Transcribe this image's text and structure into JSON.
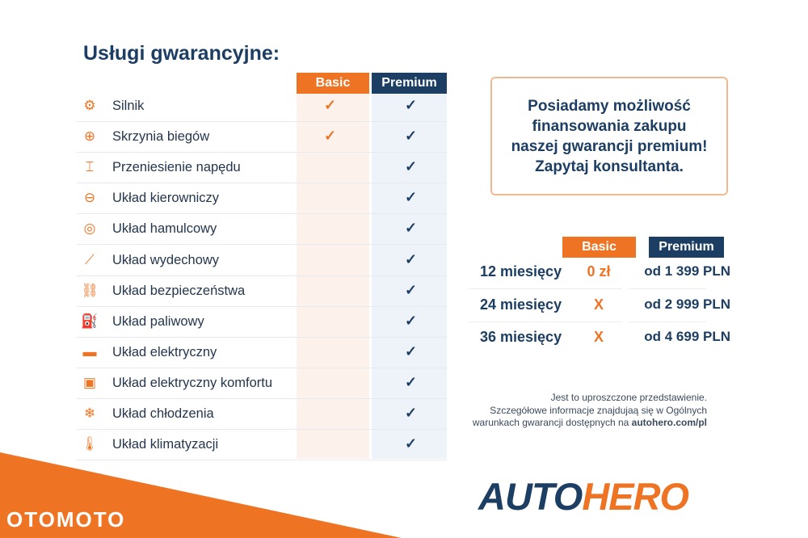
{
  "title": "Usługi gwarancyjne:",
  "plans": {
    "basic": "Basic",
    "premium": "Premium"
  },
  "colors": {
    "orange": "#ee7424",
    "navy": "#1d3e63"
  },
  "services": [
    {
      "label": "Silnik",
      "icon": "engine-icon",
      "glyph": "⚙",
      "basic": "✓",
      "premium": "✓"
    },
    {
      "label": "Skrzynia biegów",
      "icon": "gearbox-icon",
      "glyph": "⊕",
      "basic": "✓",
      "premium": "✓"
    },
    {
      "label": "Przeniesienie napędu",
      "icon": "drivetrain-icon",
      "glyph": "⌶",
      "basic": "",
      "premium": "✓"
    },
    {
      "label": "Układ kierowniczy",
      "icon": "steering-wheel-icon",
      "glyph": "⊖",
      "basic": "",
      "premium": "✓"
    },
    {
      "label": "Układ hamulcowy",
      "icon": "brake-disc-icon",
      "glyph": "◎",
      "basic": "",
      "premium": "✓"
    },
    {
      "label": "Układ wydechowy",
      "icon": "exhaust-icon",
      "glyph": "⟋",
      "basic": "",
      "premium": "✓"
    },
    {
      "label": "Układ bezpieczeństwa",
      "icon": "seatbelt-icon",
      "glyph": "⛓",
      "basic": "",
      "premium": "✓"
    },
    {
      "label": "Układ paliwowy",
      "icon": "fuel-pump-icon",
      "glyph": "⛽",
      "basic": "",
      "premium": "✓"
    },
    {
      "label": "Układ elektryczny",
      "icon": "battery-icon",
      "glyph": "▬",
      "basic": "",
      "premium": "✓"
    },
    {
      "label": "Układ elektryczny komfortu",
      "icon": "chip-icon",
      "glyph": "▣",
      "basic": "",
      "premium": "✓"
    },
    {
      "label": "Układ chłodzenia",
      "icon": "snowflake-icon",
      "glyph": "❄",
      "basic": "",
      "premium": "✓"
    },
    {
      "label": "Układ klimatyzacji",
      "icon": "thermometer-icon",
      "glyph": "🌡",
      "basic": "",
      "premium": "✓"
    }
  ],
  "promo": [
    "Posiadamy możliwość",
    "finansowania zakupu",
    "naszej gwarancji premium!",
    "Zapytaj konsultanta."
  ],
  "pricing": [
    {
      "period": "12 miesięcy",
      "basic": "0 zł",
      "premium": "od 1 399 PLN"
    },
    {
      "period": "24 miesięcy",
      "basic": "X",
      "premium": "od 2 999 PLN"
    },
    {
      "period": "36 miesięcy",
      "basic": "X",
      "premium": "od 4 699 PLN"
    }
  ],
  "note": {
    "line1": "Jest to uproszczone przedstawienie.",
    "line2": "Szczegółowe informacje znajdujaą się w Ogólnych",
    "line3": "warunkach gwarancji dostępnych na ",
    "link": "autohero.com/pl"
  },
  "logo": {
    "part1": "AUTO",
    "part2": "HERO"
  },
  "watermark": "OTOMOTO"
}
